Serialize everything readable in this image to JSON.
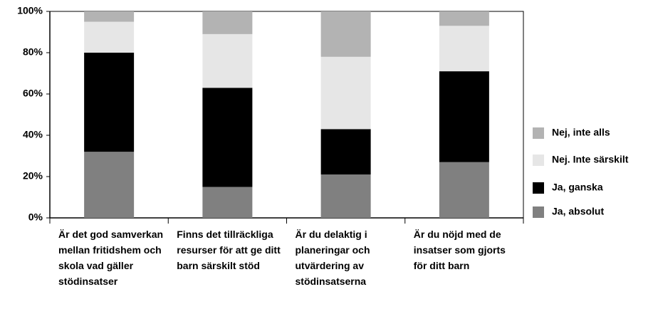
{
  "chart_data": {
    "type": "stacked_bar",
    "categories": [
      "Är det god samverkan mellan fritidshem och skola vad gäller stödinsatser",
      "Finns det tillräckliga resurser för att ge ditt barn särskilt stöd",
      "Är du delaktig i planeringar och utvärdering av stödinsatserna",
      "Är du nöjd med de insatser som gjorts för ditt barn"
    ],
    "series": [
      {
        "name": "Ja, absolut",
        "color": "#808080",
        "values": [
          32,
          15,
          21,
          27
        ]
      },
      {
        "name": "Ja, ganska",
        "color": "#000000",
        "values": [
          48,
          48,
          22,
          44
        ]
      },
      {
        "name": "Nej. Inte särskilt",
        "color": "#e6e6e6",
        "values": [
          15,
          26,
          35,
          22
        ]
      },
      {
        "name": "Nej, inte alls",
        "color": "#b3b3b3",
        "values": [
          5,
          11,
          22,
          7
        ]
      }
    ],
    "ylim": [
      0,
      100
    ],
    "yticks": [
      {
        "value": 0,
        "label": "0%"
      },
      {
        "value": 20,
        "label": "20%"
      },
      {
        "value": 40,
        "label": "40%"
      },
      {
        "value": 60,
        "label": "60%"
      },
      {
        "value": 80,
        "label": "80%"
      },
      {
        "value": 100,
        "label": "100%"
      }
    ],
    "legend": "right"
  }
}
